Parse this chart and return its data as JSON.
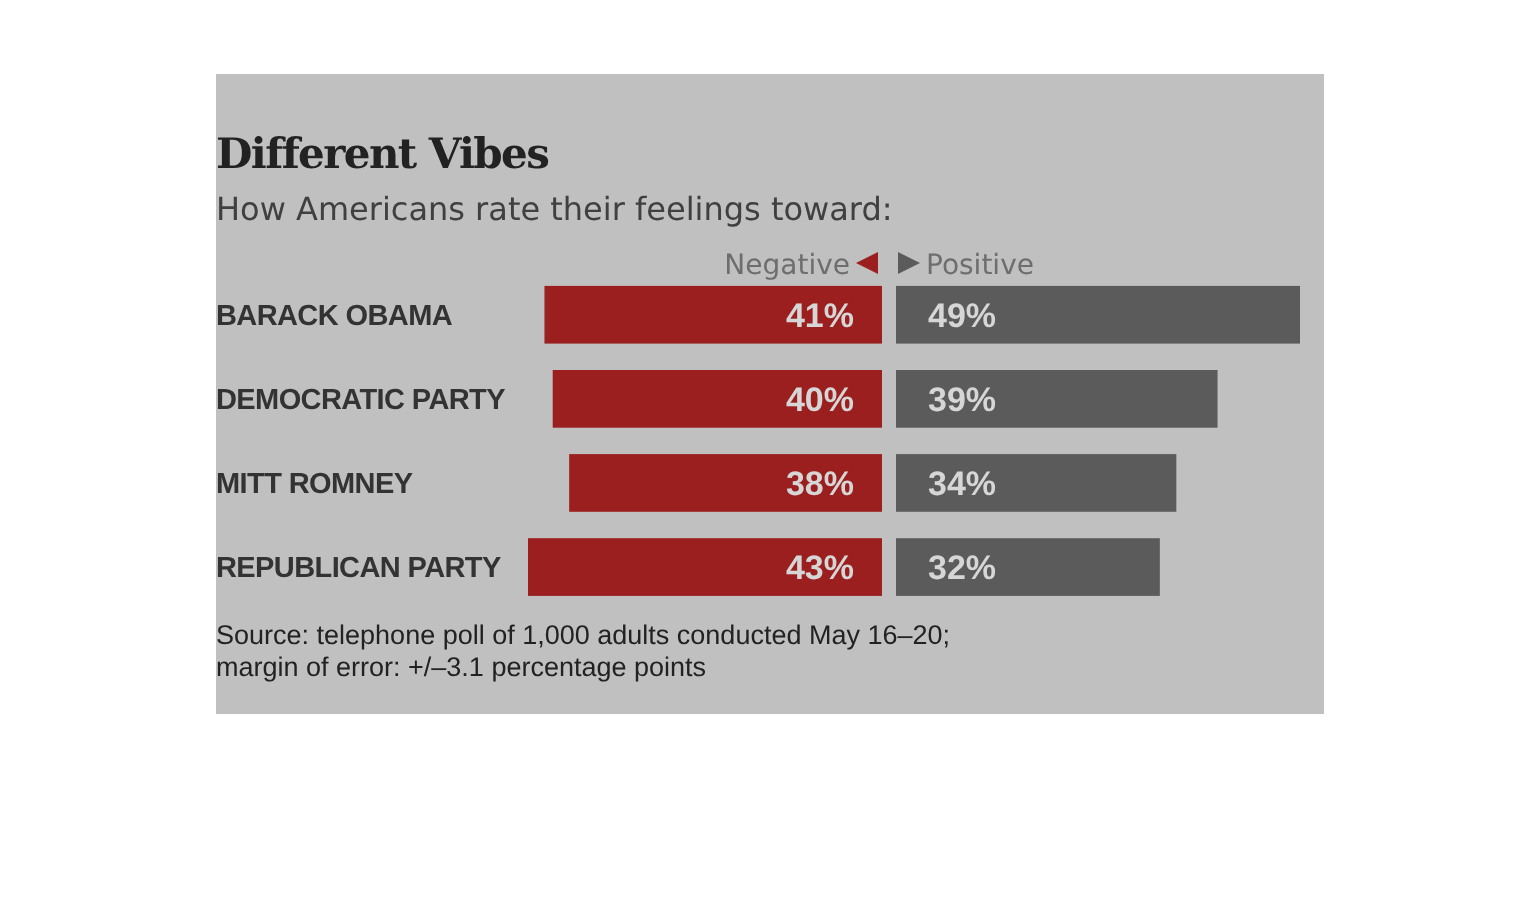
{
  "chart_data": [
    {
      "type": "bar",
      "orientation": "horizontal",
      "title": "Different Vibes",
      "subtitle": "How Americans rate their feelings toward:",
      "categories": [
        "BARACK OBAMA",
        "DEMOCRATIC PARTY",
        "MITT ROMNEY",
        "REPUBLICAN PARTY"
      ],
      "xlim": [
        43,
        0
      ],
      "series": [
        {
          "name": "Negative",
          "color": "#9b1f1f",
          "values": [
            41,
            40,
            38,
            43
          ],
          "value_labels": [
            "41%",
            "40%",
            "38%",
            "43%"
          ]
        }
      ],
      "legend": "top",
      "annotations": [
        "Source: telephone poll of 1,000 adults conducted May 16–20;",
        "margin of error: +/–3.1 percentage points"
      ]
    },
    {
      "type": "bar",
      "orientation": "horizontal",
      "categories": [
        null,
        null,
        null,
        null
      ],
      "xlim": [
        0,
        49
      ],
      "series": [
        {
          "name": "Positive",
          "color": "#5b5b5b",
          "values": [
            49,
            39,
            34,
            32
          ],
          "value_labels": [
            "49%",
            "39%",
            "34%",
            "32%"
          ]
        }
      ],
      "legend": "top"
    }
  ]
}
